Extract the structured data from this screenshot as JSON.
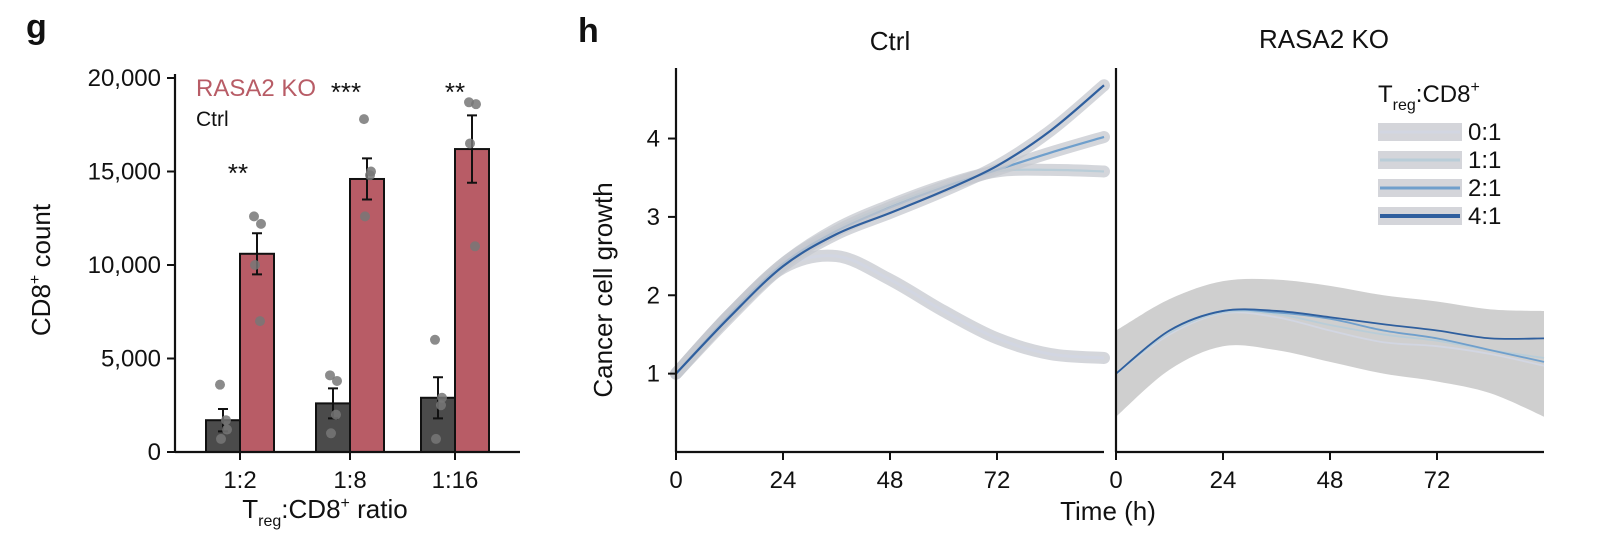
{
  "colors": {
    "ko": "#b85c66",
    "ctrl_bar": "#4b4b4b",
    "dot": "#7a7a7a",
    "t01": "#d2d6e2",
    "t11": "#b9cdd8",
    "t21": "#6f9fcc",
    "t41": "#2f5f9e",
    "band": "#a8a8a8"
  },
  "chart_data": [
    {
      "panel": "g",
      "type": "bar",
      "categories": [
        "1:2",
        "1:8",
        "1:16"
      ],
      "series": [
        {
          "name": "Ctrl",
          "values": [
            1700,
            2600,
            2900
          ],
          "errors": [
            600,
            800,
            1100
          ],
          "points": [
            [
              3600,
              1200,
              700,
              1700
            ],
            [
              4100,
              3800,
              1000,
              2000
            ],
            [
              6000,
              2900,
              700,
              2500
            ]
          ]
        },
        {
          "name": "RASA2 KO",
          "values": [
            10600,
            14600,
            16200
          ],
          "errors": [
            1100,
            1100,
            1800
          ],
          "points": [
            [
              12600,
              12200,
              10000,
              7000
            ],
            [
              17800,
              15000,
              12600,
              14800
            ],
            [
              18700,
              18600,
              16500,
              11000
            ]
          ]
        }
      ],
      "significance": [
        "**",
        "***",
        "**"
      ],
      "legend": [
        "RASA2 KO",
        "Ctrl"
      ],
      "legend_position": "top-left",
      "ylim": [
        0,
        20000
      ],
      "yticks": [
        0,
        5000,
        10000,
        15000,
        20000
      ],
      "ytick_labels": [
        "0",
        "5,000",
        "10,000",
        "15,000",
        "20,000"
      ],
      "ylabel": {
        "main": "CD8",
        "sup": "+",
        "rest": " count"
      },
      "xlabel": {
        "main": "T",
        "sub": "reg",
        "mid": ":CD8",
        "sup": "+",
        "rest": " ratio"
      }
    },
    {
      "panel": "h",
      "type": "line",
      "facets": [
        "Ctrl",
        "RASA2 KO"
      ],
      "xlim": [
        0,
        96
      ],
      "xticks": [
        0,
        24,
        48,
        72
      ],
      "ylim": [
        0.0,
        4.9
      ],
      "yticks": [
        1,
        2,
        3,
        4
      ],
      "xlabel": "Time (h)",
      "ylabel": "Cancer cell growth",
      "legend_title": {
        "main": "T",
        "sub": "reg",
        "rest": ":CD8",
        "sup": "+"
      },
      "legend_position": "top-right",
      "series_names": [
        "0:1",
        "1:1",
        "2:1",
        "4:1"
      ],
      "x": [
        0,
        12,
        24,
        36,
        48,
        60,
        72,
        84,
        96
      ],
      "ctrl": [
        {
          "name": "0:1",
          "y": [
            1.0,
            1.75,
            2.35,
            2.5,
            2.2,
            1.8,
            1.45,
            1.25,
            1.2
          ]
        },
        {
          "name": "1:1",
          "y": [
            1.0,
            1.75,
            2.4,
            2.85,
            3.15,
            3.4,
            3.58,
            3.6,
            3.58
          ]
        },
        {
          "name": "2:1",
          "y": [
            1.0,
            1.75,
            2.4,
            2.82,
            3.12,
            3.38,
            3.6,
            3.82,
            4.02
          ]
        },
        {
          "name": "4:1",
          "y": [
            1.0,
            1.72,
            2.37,
            2.78,
            3.05,
            3.33,
            3.65,
            4.1,
            4.68
          ]
        }
      ],
      "ko": [
        {
          "name": "0:1",
          "y": [
            1.0,
            1.5,
            1.77,
            1.72,
            1.55,
            1.4,
            1.35,
            1.25,
            1.1
          ]
        },
        {
          "name": "1:1",
          "y": [
            1.0,
            1.52,
            1.78,
            1.76,
            1.62,
            1.5,
            1.42,
            1.3,
            1.2
          ]
        },
        {
          "name": "2:1",
          "y": [
            1.0,
            1.55,
            1.8,
            1.78,
            1.7,
            1.55,
            1.45,
            1.3,
            1.15
          ]
        },
        {
          "name": "4:1",
          "y": [
            1.0,
            1.55,
            1.8,
            1.8,
            1.72,
            1.63,
            1.55,
            1.45,
            1.45
          ]
        }
      ],
      "ko_band": {
        "upper": [
          1.55,
          1.95,
          2.18,
          2.2,
          2.12,
          2.0,
          1.92,
          1.82,
          1.8
        ],
        "lower": [
          0.45,
          1.05,
          1.35,
          1.3,
          1.15,
          1.0,
          0.9,
          0.75,
          0.45
        ]
      }
    }
  ],
  "panels": {
    "g": "g",
    "h": "h"
  }
}
